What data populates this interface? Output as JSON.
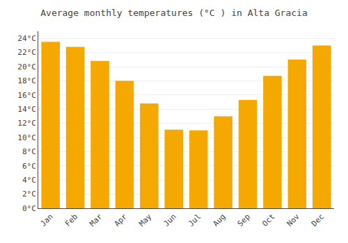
{
  "chart_data": {
    "type": "bar",
    "title": "Average monthly temperatures (°C ) in Alta Gracia",
    "categories": [
      "Jan",
      "Feb",
      "Mar",
      "Apr",
      "May",
      "Jun",
      "Jul",
      "Aug",
      "Sep",
      "Oct",
      "Nov",
      "Dec"
    ],
    "values": [
      23.5,
      22.8,
      20.8,
      18.0,
      14.8,
      11.1,
      11.0,
      13.0,
      15.3,
      18.7,
      21.0,
      23.0
    ],
    "color": "#F5A800",
    "ylim": [
      0,
      25
    ],
    "yticks": [
      {
        "value": 0,
        "label": "0°C"
      },
      {
        "value": 2,
        "label": "2°C"
      },
      {
        "value": 4,
        "label": "4°C"
      },
      {
        "value": 6,
        "label": "6°C"
      },
      {
        "value": 8,
        "label": "8°C"
      },
      {
        "value": 10,
        "label": "10°C"
      },
      {
        "value": 12,
        "label": "12°C"
      },
      {
        "value": 14,
        "label": "14°C"
      },
      {
        "value": 16,
        "label": "16°C"
      },
      {
        "value": 18,
        "label": "18°C"
      },
      {
        "value": 20,
        "label": "20°C"
      },
      {
        "value": 22,
        "label": "22°C"
      },
      {
        "value": 24,
        "label": "24°C"
      }
    ],
    "grid": true
  }
}
